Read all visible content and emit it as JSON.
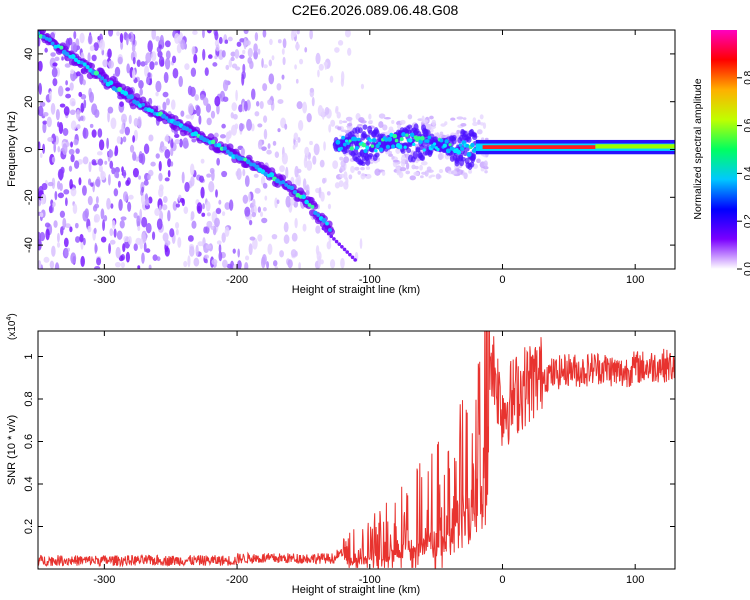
{
  "figure": {
    "title": "C2E6.2026.089.06.48.G08"
  },
  "chart_data": [
    {
      "type": "heatmap",
      "title": "C2E6.2026.089.06.48.G08",
      "xlabel": "Height of straight line (km)",
      "ylabel": "Frequency (Hz)",
      "xlim": [
        -350,
        130
      ],
      "ylim": [
        -50,
        50
      ],
      "xticks": [
        -300,
        -200,
        -100,
        0,
        100
      ],
      "yticks": [
        -40,
        -20,
        0,
        20,
        40
      ],
      "grid": false,
      "colorbar": {
        "label": "Normalized spectral amplitude",
        "range": [
          0,
          1
        ],
        "ticks": [
          "0.0",
          "0.2",
          "0.4",
          "0.6",
          "0.8"
        ],
        "colormap": [
          "#ffffff",
          "#7a00ff",
          "#0000ff",
          "#00c8ff",
          "#00ff60",
          "#c0ff00",
          "#ffb000",
          "#ff0000",
          "#ff00c0"
        ]
      },
      "features": {
        "descending_trace": {
          "x": [
            -350,
            -330,
            -300,
            -270,
            -240,
            -210,
            -180,
            -150,
            -130
          ],
          "y": [
            49,
            41,
            29,
            18,
            9,
            0,
            -9,
            -20,
            -33
          ]
        },
        "flat_trace": {
          "x": [
            -125,
            -100,
            -75,
            -50,
            -25,
            0,
            25,
            50,
            75,
            100,
            130
          ],
          "y": [
            2,
            2,
            4,
            2,
            0,
            1,
            1,
            1,
            1,
            1,
            1
          ]
        },
        "noise_region_x": [
          -350,
          -120
        ]
      }
    },
    {
      "type": "line",
      "xlabel": "Height of straight line (km)",
      "ylabel": "SNR (10 * v/v)",
      "y_scale_label": "(x10",
      "y_scale_exp": "4",
      "y_scale_close": ")",
      "xlim": [
        -350,
        130
      ],
      "ylim": [
        0,
        1.12
      ],
      "xticks": [
        -300,
        -200,
        -100,
        0,
        100
      ],
      "yticks": [
        0.2,
        0.4,
        0.6,
        0.8,
        1
      ],
      "grid": false,
      "color": "#e8332f",
      "series": [
        {
          "x": [
            -350,
            -300,
            -250,
            -200,
            -150,
            -125,
            -100,
            -80,
            -60,
            -40,
            -30,
            -20,
            -12,
            -10,
            -5,
            0,
            10,
            20,
            30,
            40,
            50,
            60,
            70,
            80,
            90,
            100,
            110,
            120,
            130
          ],
          "y": [
            0.05,
            0.05,
            0.06,
            0.06,
            0.07,
            0.07,
            0.1,
            0.17,
            0.22,
            0.32,
            0.42,
            0.6,
            0.8,
            1.05,
            0.9,
            0.75,
            0.82,
            0.88,
            0.91,
            0.92,
            0.94,
            0.93,
            0.95,
            0.94,
            0.92,
            0.95,
            0.95,
            0.96,
            0.95
          ]
        }
      ]
    }
  ]
}
